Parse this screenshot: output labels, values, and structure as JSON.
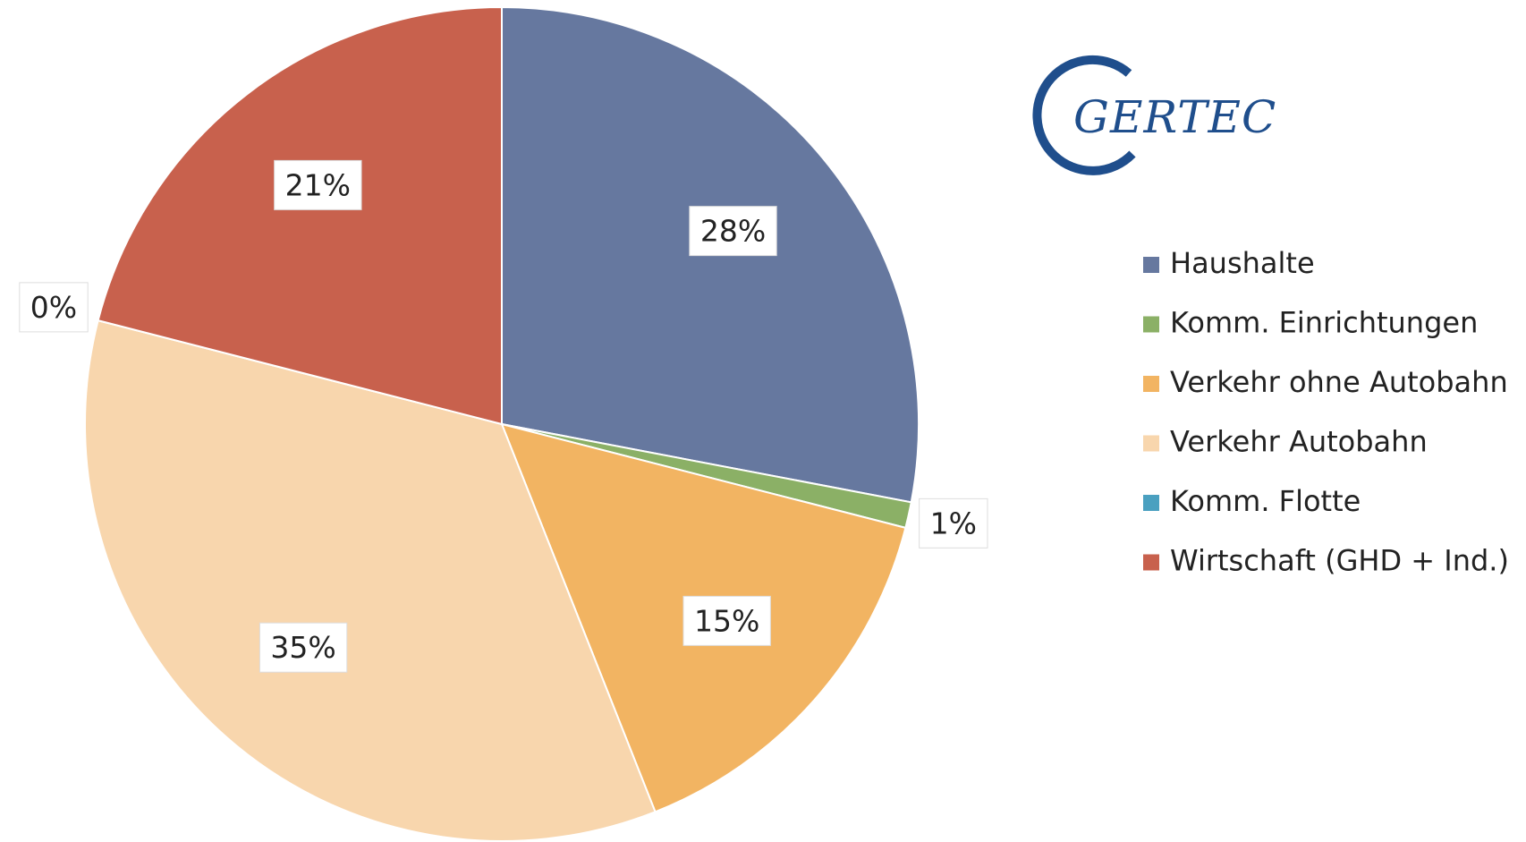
{
  "logo": {
    "text": "GERTEC"
  },
  "chart_data": {
    "type": "pie",
    "categories": [
      "Haushalte",
      "Komm. Einrichtungen",
      "Verkehr ohne Autobahn",
      "Verkehr Autobahn",
      "Komm. Flotte",
      "Wirtschaft (GHD + Ind.)"
    ],
    "values": [
      28,
      1,
      15,
      35,
      0,
      21
    ],
    "value_labels": [
      "28%",
      "1%",
      "15%",
      "35%",
      "0%",
      "21%"
    ],
    "colors": [
      "#66789f",
      "#8bb066",
      "#f2b462",
      "#f8d6ad",
      "#4aa0c0",
      "#c8614d"
    ],
    "legend": "right"
  }
}
